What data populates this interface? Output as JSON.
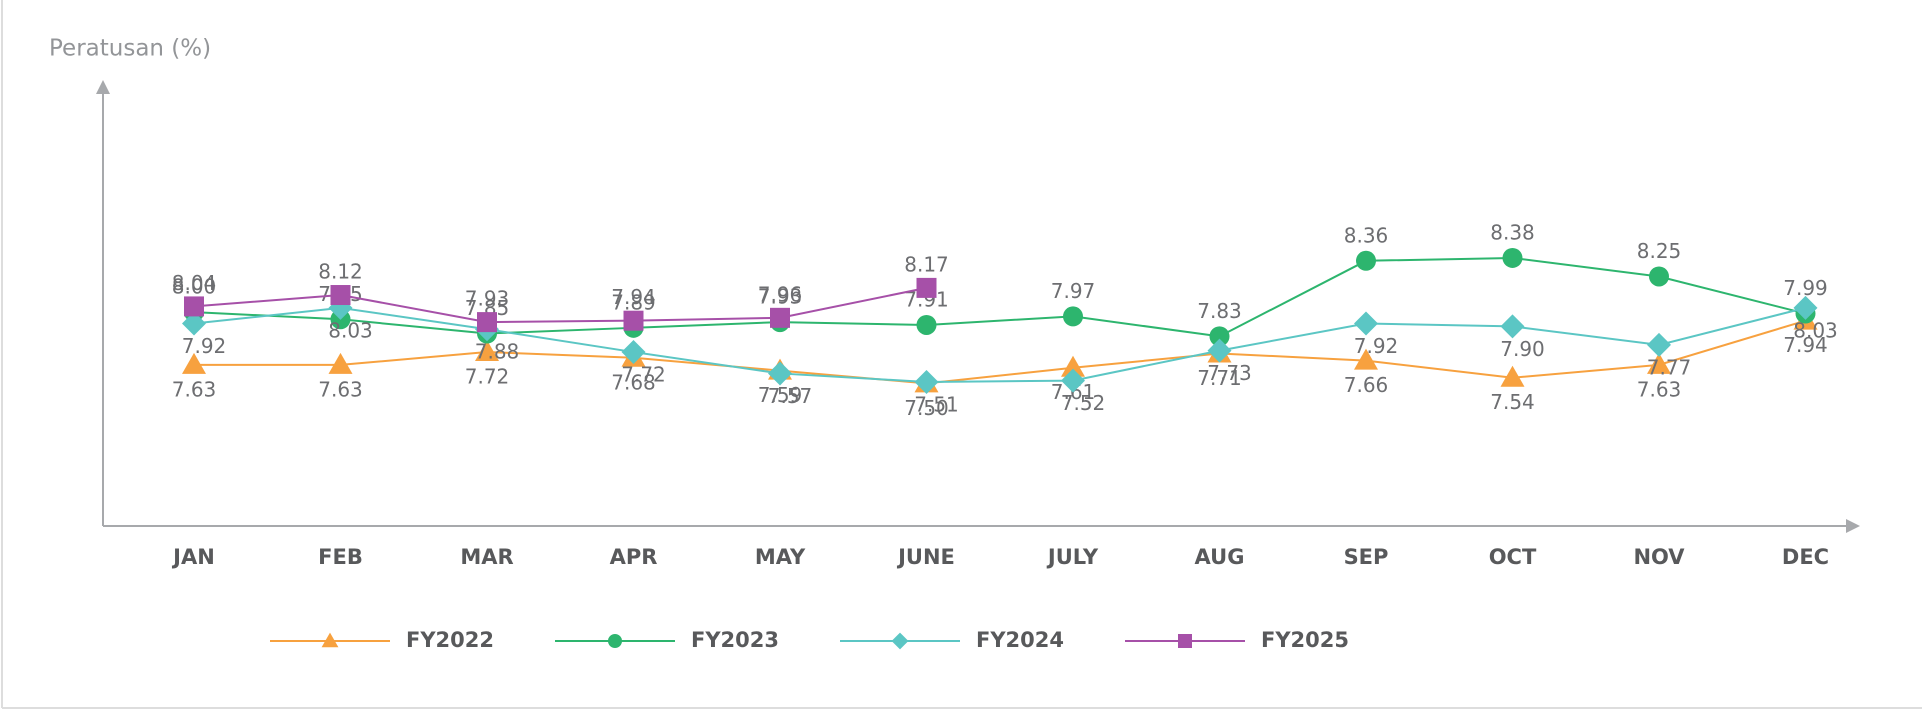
{
  "chart_data": {
    "type": "line",
    "y_label": "Peratusan (%)",
    "categories": [
      "JAN",
      "FEB",
      "MAR",
      "APR",
      "MAY",
      "JUNE",
      "JULY",
      "AUG",
      "SEP",
      "OCT",
      "NOV",
      "DEC"
    ],
    "ylim": [
      6.5,
      9.6
    ],
    "series": [
      {
        "name": "FY2022",
        "color": "#f7a13f",
        "marker": "triangle",
        "values": [
          7.63,
          7.63,
          7.72,
          7.68,
          7.59,
          7.5,
          7.61,
          7.71,
          7.66,
          7.54,
          7.63,
          7.94
        ],
        "value_labels": [
          "7.63",
          "7.63",
          "7.72",
          "7.68",
          "7.59",
          "7.50",
          "7.61",
          "7.71",
          "7.66",
          "7.54",
          "7.63",
          "7.94"
        ]
      },
      {
        "name": "FY2023",
        "color": "#2db56e",
        "marker": "circle",
        "values": [
          8,
          7.95,
          7.85,
          7.89,
          7.93,
          7.91,
          7.97,
          7.83,
          8.36,
          8.38,
          8.25,
          7.99
        ],
        "value_labels": [
          "8.00",
          "7.95",
          "7.85",
          "7.89",
          "7.93",
          "7.91",
          "7.97",
          "7.83",
          "8.36",
          "8.38",
          "8.25",
          "7.99"
        ]
      },
      {
        "name": "FY2024",
        "color": "#5bc6c4",
        "marker": "diamond",
        "values": [
          7.92,
          8.03,
          7.88,
          7.72,
          7.57,
          7.51,
          7.52,
          7.73,
          7.92,
          7.9,
          7.77,
          8.03
        ],
        "value_labels": [
          "7.92",
          "8.03",
          "7.88",
          "7.72",
          "7.57",
          "7.51",
          "7.52",
          "7.73",
          "7.92",
          "7.90",
          "7.77",
          "8.03"
        ]
      },
      {
        "name": "FY2025",
        "color": "#a650a8",
        "marker": "square",
        "values": [
          8.04,
          8.12,
          7.93,
          7.94,
          7.96,
          8.17,
          null,
          null,
          null,
          null,
          null,
          null
        ],
        "value_labels": [
          "8.04",
          "8.12",
          "7.93",
          "7.94",
          "7.96",
          "8.17",
          null,
          null,
          null,
          null,
          null,
          null
        ]
      }
    ]
  }
}
